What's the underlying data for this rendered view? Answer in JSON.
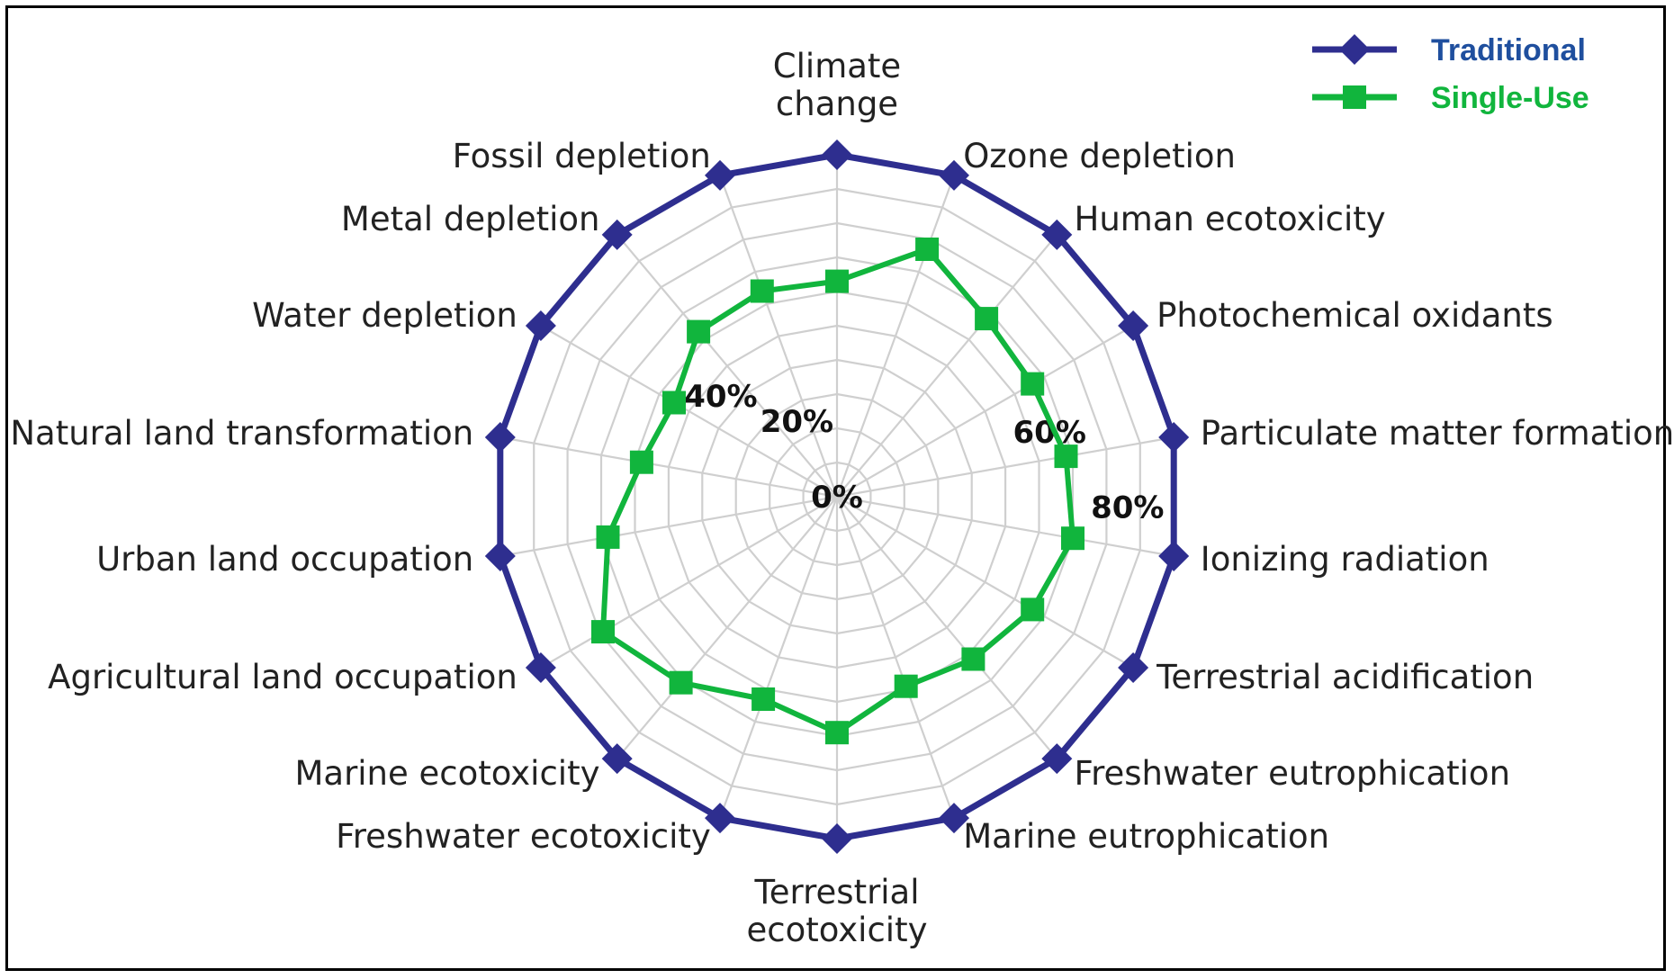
{
  "chart_data": {
    "type": "radar",
    "categories": [
      "Climate change",
      "Ozone depletion",
      "Human ecotoxicity",
      "Photochemical oxidants",
      "Particulate matter formation",
      "Ionizing radiation",
      "Terrestrial acidification",
      "Freshwater eutrophication",
      "Marine eutrophication",
      "Terrestrial ecotoxicity",
      "Freshwater ecotoxicity",
      "Marine ecotoxicity",
      "Agricultural land occupation",
      "Urban land occupation",
      "Natural land transformation",
      "Water depletion",
      "Metal depletion",
      "Fossil depletion"
    ],
    "category_lines": [
      [
        "Climate",
        "change"
      ],
      [
        "Ozone depletion"
      ],
      [
        "Human ecotoxicity"
      ],
      [
        "Photochemical oxidants"
      ],
      [
        "Particulate matter formation"
      ],
      [
        "Ionizing radiation"
      ],
      [
        "Terrestrial acidification"
      ],
      [
        "Freshwater eutrophication"
      ],
      [
        "Marine eutrophication"
      ],
      [
        "Terrestrial",
        "ecotoxicity"
      ],
      [
        "Freshwater ecotoxicity"
      ],
      [
        "Marine ecotoxicity"
      ],
      [
        "Agricultural land occupation"
      ],
      [
        "Urban land occupation"
      ],
      [
        "Natural land transformation"
      ],
      [
        "Water depletion"
      ],
      [
        "Metal depletion"
      ],
      [
        "Fossil depletion"
      ]
    ],
    "rmax": 100,
    "ring_values": [
      0,
      20,
      40,
      60,
      80
    ],
    "ring_labels": [
      {
        "text": "0%",
        "value": 0
      },
      {
        "text": "20%",
        "value": 20
      },
      {
        "text": "40%",
        "value": 40
      },
      {
        "text": "60%",
        "value": 60
      },
      {
        "text": "80%",
        "value": 80
      }
    ],
    "grid": true,
    "series": [
      {
        "name": "Traditional",
        "color": "#2e2e8f",
        "marker": "diamond",
        "values": [
          100,
          100,
          100,
          100,
          100,
          100,
          100,
          100,
          100,
          100,
          100,
          100,
          100,
          100,
          100,
          100,
          100,
          100
        ]
      },
      {
        "name": "Single-Use",
        "color": "#11b53d",
        "marker": "square",
        "values": [
          63,
          77,
          68,
          66,
          68,
          70,
          66,
          62,
          59,
          69,
          63,
          71,
          79,
          68,
          58,
          55,
          63,
          64
        ]
      }
    ],
    "legend": {
      "position": "top-right",
      "items": [
        {
          "label": "Traditional",
          "text_color": "#1f4f9e"
        },
        {
          "label": "Single-Use",
          "text_color": "#11b53d"
        }
      ]
    }
  }
}
